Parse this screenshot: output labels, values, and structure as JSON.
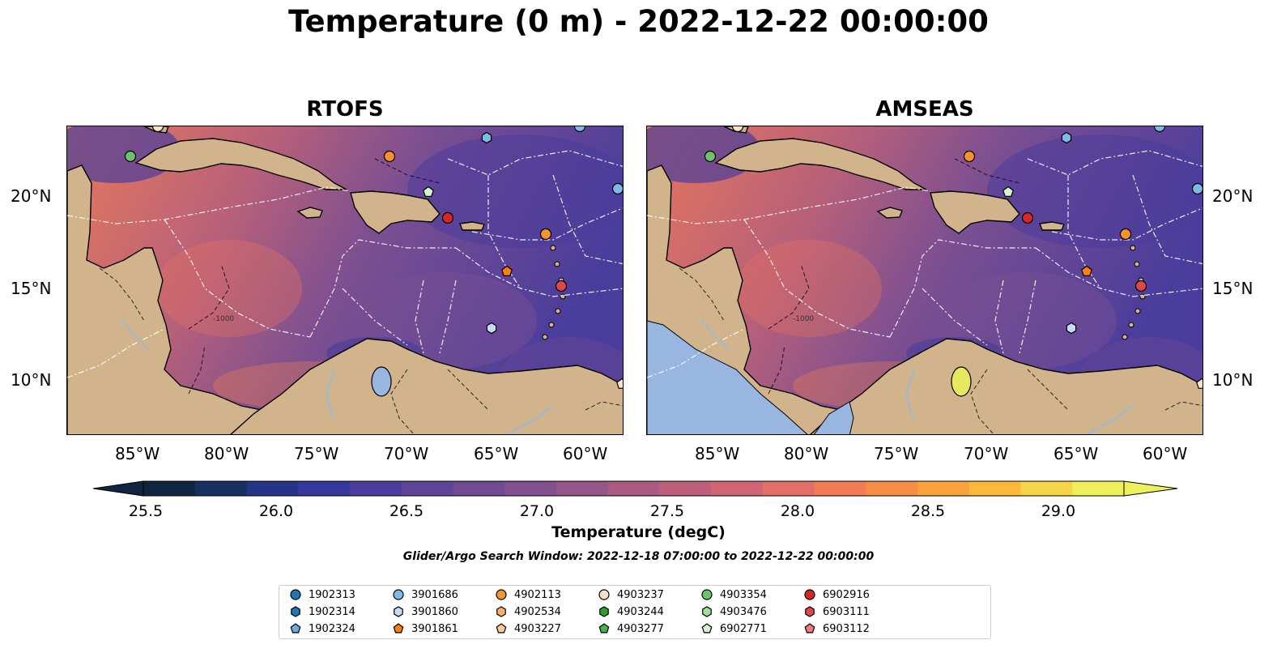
{
  "title": "Temperature (0 m) - 2022-12-22 00:00:00",
  "panels": [
    {
      "name": "RTOFS"
    },
    {
      "name": "AMSEAS"
    }
  ],
  "lat_labels": [
    "20°N",
    "15°N",
    "10°N"
  ],
  "lon_labels": [
    "85°W",
    "80°W",
    "75°W",
    "70°W",
    "65°W",
    "60°W"
  ],
  "contour_label": "-1000",
  "colorbar": {
    "label": "Temperature (degC)",
    "ticks": [
      "25.5",
      "26.0",
      "26.5",
      "27.0",
      "27.5",
      "28.0",
      "28.5",
      "29.0"
    ],
    "colors": [
      "#0e2440",
      "#16315f",
      "#233489",
      "#35399c",
      "#4b3d9e",
      "#5f4498",
      "#714b92",
      "#82508d",
      "#95568a",
      "#a95b83",
      "#bd5f7b",
      "#d06673",
      "#e36f66",
      "#f17c56",
      "#f78c45",
      "#fba23c",
      "#fdba3a",
      "#f6d648",
      "#eef05a"
    ]
  },
  "search_window": "Glider/Argo Search Window: 2022-12-18 07:00:00 to 2022-12-22 00:00:00",
  "colors": {
    "land": "#d2b48c",
    "ocean_mask": "#98b6e0",
    "warm": "#e8725f",
    "mid": "#8a5790",
    "cool": "#4a3d9c"
  },
  "legend": [
    {
      "id": "1902313",
      "shape": "circle",
      "color": "#1f77b4"
    },
    {
      "id": "1902314",
      "shape": "hexagon",
      "color": "#1f77b4"
    },
    {
      "id": "1902324",
      "shape": "pentagon",
      "color": "#6fa8dc"
    },
    {
      "id": "3901686",
      "shape": "circle",
      "color": "#7fb9e6"
    },
    {
      "id": "3901860",
      "shape": "hexagon",
      "color": "#c6dbef"
    },
    {
      "id": "3901861",
      "shape": "pentagon",
      "color": "#ff7f0e"
    },
    {
      "id": "4902113",
      "shape": "circle",
      "color": "#f8922e"
    },
    {
      "id": "4902534",
      "shape": "hexagon",
      "color": "#fdae6b"
    },
    {
      "id": "4903227",
      "shape": "pentagon",
      "color": "#fdc99a"
    },
    {
      "id": "4903237",
      "shape": "circle",
      "color": "#fde0c8"
    },
    {
      "id": "4903244",
      "shape": "hexagon",
      "color": "#2ca02c"
    },
    {
      "id": "4903277",
      "shape": "pentagon",
      "color": "#4caf50"
    },
    {
      "id": "4903354",
      "shape": "circle",
      "color": "#6cc36c"
    },
    {
      "id": "4903476",
      "shape": "hexagon",
      "color": "#a1e09a"
    },
    {
      "id": "6902771",
      "shape": "pentagon",
      "color": "#d4f5cf"
    },
    {
      "id": "6902916",
      "shape": "circle",
      "color": "#d62728"
    },
    {
      "id": "6903111",
      "shape": "hexagon",
      "color": "#e0474a"
    },
    {
      "id": "6903112",
      "shape": "pentagon",
      "color": "#f07a80"
    }
  ]
}
